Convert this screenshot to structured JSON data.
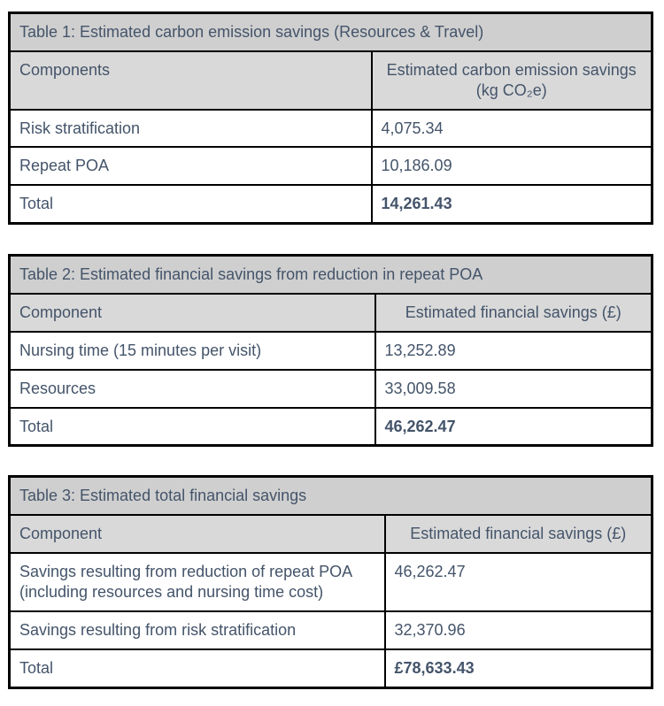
{
  "colors": {
    "text": "#44546A",
    "title_row_bg": "#cfcfcf",
    "header_row_bg": "#d9d9d9",
    "border": "#000000",
    "page_bg": "#ffffff"
  },
  "tables": [
    {
      "title": "Table 1: Estimated carbon emission savings (Resources & Travel)",
      "columns": {
        "component": "Components",
        "value": "Estimated carbon emission savings (kg CO₂e)"
      },
      "rows": [
        {
          "label": "Risk stratification",
          "value": "4,075.34"
        },
        {
          "label": "Repeat POA",
          "value": "10,186.09"
        },
        {
          "label": "Total",
          "value": "14,261.43"
        }
      ]
    },
    {
      "title": "Table 2: Estimated financial savings from reduction in repeat POA",
      "columns": {
        "component": "Component",
        "value": "Estimated financial savings (£)"
      },
      "rows": [
        {
          "label": "Nursing time (15 minutes per visit)",
          "value": "13,252.89"
        },
        {
          "label": "Resources",
          "value": "33,009.58"
        },
        {
          "label": "Total",
          "value": "46,262.47"
        }
      ]
    },
    {
      "title": "Table 3: Estimated total financial savings",
      "columns": {
        "component": "Component",
        "value": "Estimated financial savings (£)"
      },
      "rows": [
        {
          "label": "Savings resulting from reduction of repeat POA (including resources and nursing time cost)",
          "value": "46,262.47"
        },
        {
          "label": "Savings resulting from risk stratification",
          "value": "32,370.96"
        },
        {
          "label": "Total",
          "value": "£78,633.43"
        }
      ]
    }
  ]
}
